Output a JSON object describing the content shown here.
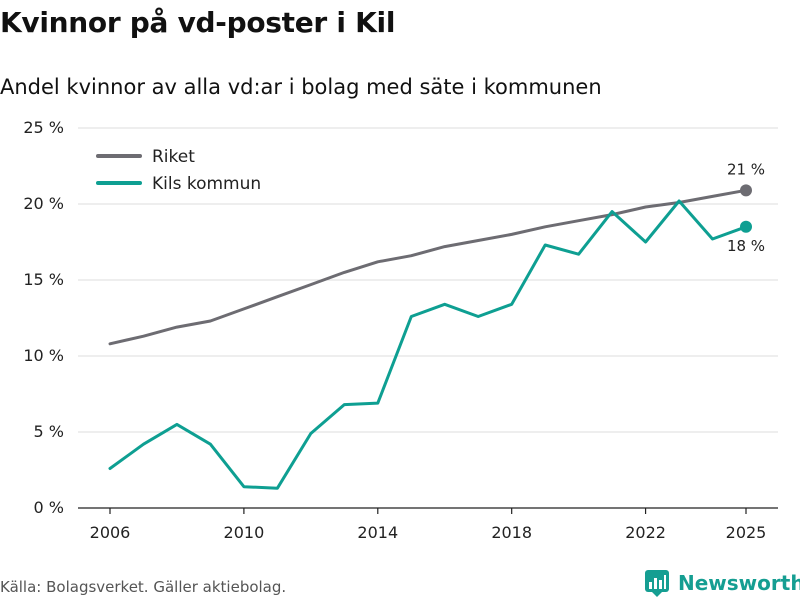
{
  "title": "Kvinnor på vd-poster i Kil",
  "subtitle": "Andel kvinnor av alla vd:ar i bolag med säte i kommunen",
  "source": "Källa: Bolagsverket. Gäller aktiebolag.",
  "brand": "Newsworthy",
  "colors": {
    "riket": "#6d6c72",
    "kil": "#0e9f92",
    "grid": "#dddddd",
    "axis": "#222222",
    "brand": "#159e92"
  },
  "chart_data": {
    "type": "line",
    "title": "Kvinnor på vd-poster i Kil",
    "subtitle": "Andel kvinnor av alla vd:ar i bolag med säte i kommunen",
    "xlabel": "",
    "ylabel": "",
    "x": [
      2006,
      2007,
      2008,
      2009,
      2010,
      2011,
      2012,
      2013,
      2014,
      2015,
      2016,
      2017,
      2018,
      2019,
      2020,
      2021,
      2022,
      2023,
      2024,
      2025
    ],
    "xlim": [
      2006,
      2025
    ],
    "xticks": [
      2006,
      2010,
      2014,
      2018,
      2022,
      2025
    ],
    "xtick_labels": [
      "2006",
      "2010",
      "2014",
      "2018",
      "2022",
      "2025"
    ],
    "ylim": [
      0,
      25
    ],
    "yticks": [
      0,
      5,
      10,
      15,
      20,
      25
    ],
    "ytick_labels": [
      "0 %",
      "5 %",
      "10 %",
      "15 %",
      "20 %",
      "25 %"
    ],
    "grid": true,
    "legend_position": "top-left",
    "series": [
      {
        "name": "Riket",
        "color": "#6d6c72",
        "values": [
          10.8,
          11.3,
          11.9,
          12.3,
          13.1,
          13.9,
          14.7,
          15.5,
          16.2,
          16.6,
          17.2,
          17.6,
          18.0,
          18.5,
          18.9,
          19.3,
          19.8,
          20.1,
          20.5,
          20.9
        ],
        "end_label": "21 %",
        "end_label_position": "above"
      },
      {
        "name": "Kils kommun",
        "color": "#0e9f92",
        "values": [
          2.6,
          4.2,
          5.5,
          4.2,
          1.4,
          1.3,
          4.9,
          6.8,
          6.9,
          12.6,
          13.4,
          12.6,
          13.4,
          17.3,
          16.7,
          19.5,
          17.5,
          20.2,
          17.7,
          18.5
        ],
        "end_label": "18 %",
        "end_label_position": "below"
      }
    ]
  }
}
